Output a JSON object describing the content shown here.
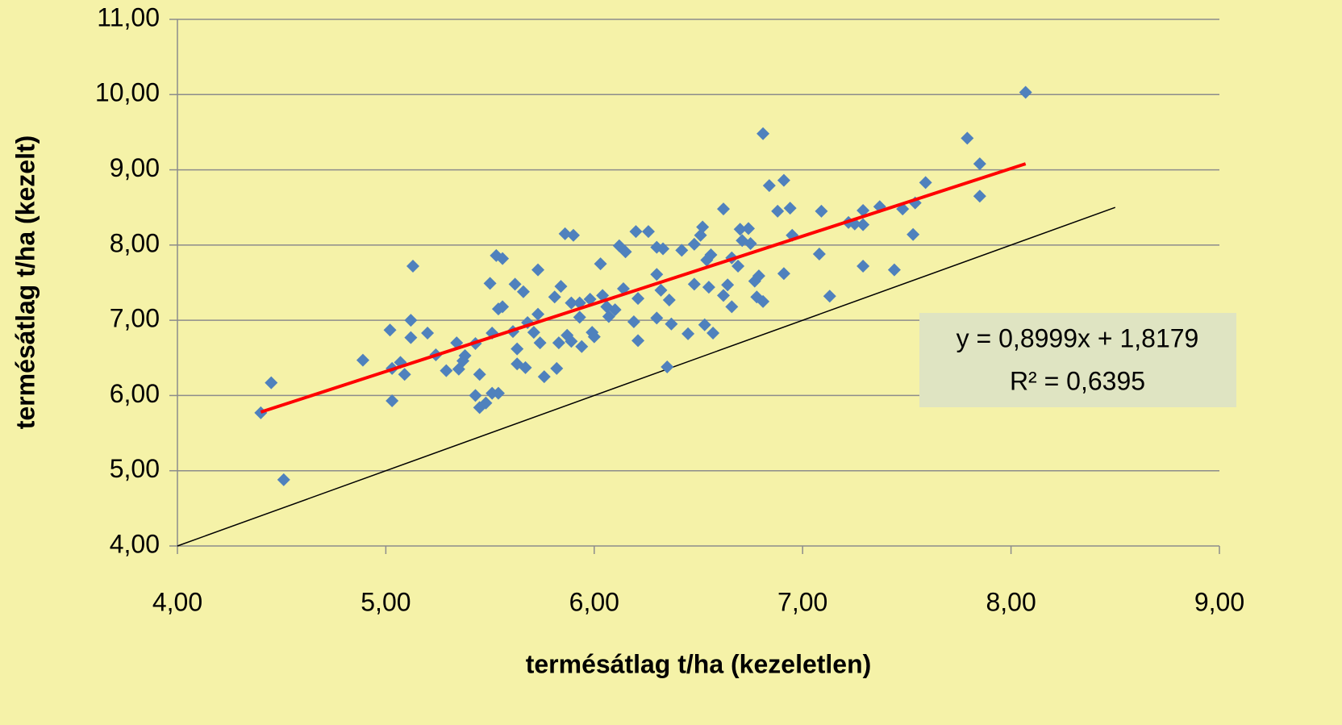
{
  "chart_data": {
    "type": "scatter",
    "xlabel": "termésátlag t/ha (kezeletlen)",
    "ylabel": "termésátlag t/ha (kezelt)",
    "annotation": [
      "y = 0,8999x + 1,8179",
      "R² = 0,6395"
    ],
    "xlim": [
      4,
      9
    ],
    "ylim": [
      4,
      11
    ],
    "xticks": [
      {
        "value": 4,
        "label": "4,00"
      },
      {
        "value": 5,
        "label": "5,00"
      },
      {
        "value": 6,
        "label": "6,00"
      },
      {
        "value": 7,
        "label": "7,00"
      },
      {
        "value": 8,
        "label": "8,00"
      },
      {
        "value": 9,
        "label": "9,00"
      }
    ],
    "yticks": [
      {
        "value": 4,
        "label": "4,00"
      },
      {
        "value": 5,
        "label": "5,00"
      },
      {
        "value": 6,
        "label": "6,00"
      },
      {
        "value": 7,
        "label": "7,00"
      },
      {
        "value": 8,
        "label": "8,00"
      },
      {
        "value": 9,
        "label": "9,00"
      },
      {
        "value": 10,
        "label": "10,00"
      },
      {
        "value": 11,
        "label": "11,00"
      }
    ],
    "grid": true,
    "color": "#4f81bd",
    "x": [
      4.4,
      4.45,
      4.51,
      4.89,
      5.02,
      5.03,
      5.03,
      5.07,
      5.09,
      5.12,
      5.12,
      5.13,
      5.2,
      5.24,
      5.29,
      5.34,
      5.35,
      5.38,
      5.37,
      5.43,
      5.43,
      5.45,
      5.45,
      5.48,
      5.5,
      5.51,
      5.51,
      5.54,
      5.53,
      5.54,
      5.56,
      5.56,
      5.61,
      5.62,
      5.63,
      5.63,
      5.66,
      5.67,
      5.68,
      5.71,
      5.73,
      5.73,
      5.74,
      5.76,
      5.81,
      5.82,
      5.84,
      5.83,
      5.86,
      5.87,
      5.89,
      5.9,
      5.89,
      5.93,
      5.93,
      5.94,
      5.98,
      5.99,
      6.0,
      6.03,
      6.04,
      6.06,
      6.07,
      6.1,
      6.12,
      6.14,
      6.15,
      6.2,
      6.19,
      6.21,
      6.21,
      6.26,
      6.3,
      6.3,
      6.3,
      6.33,
      6.32,
      6.35,
      6.36,
      6.37,
      6.42,
      6.45,
      6.48,
      6.48,
      6.51,
      6.52,
      6.54,
      6.55,
      6.53,
      6.57,
      6.56,
      6.62,
      6.62,
      6.64,
      6.66,
      6.66,
      6.69,
      6.7,
      6.71,
      6.74,
      6.75,
      6.77,
      6.78,
      6.79,
      6.81,
      6.81,
      6.84,
      6.88,
      6.91,
      6.91,
      6.94,
      6.95,
      7.08,
      7.09,
      7.13,
      7.22,
      7.25,
      7.29,
      7.29,
      7.29,
      7.37,
      7.44,
      7.48,
      7.53,
      7.54,
      7.59,
      7.79,
      7.85,
      7.85,
      8.07
    ],
    "y": [
      5.77,
      6.17,
      4.88,
      6.47,
      6.87,
      5.93,
      6.36,
      6.44,
      6.28,
      7.0,
      6.77,
      7.72,
      6.83,
      6.54,
      6.33,
      6.7,
      6.35,
      6.53,
      6.46,
      6.69,
      6.0,
      5.84,
      6.28,
      5.9,
      7.49,
      6.83,
      6.03,
      6.03,
      7.86,
      7.15,
      7.82,
      7.18,
      6.85,
      7.48,
      6.62,
      6.42,
      7.38,
      6.37,
      6.97,
      6.84,
      7.67,
      7.08,
      6.7,
      6.25,
      7.31,
      6.36,
      7.45,
      6.7,
      8.15,
      6.8,
      6.72,
      8.13,
      7.23,
      7.04,
      7.23,
      6.65,
      7.28,
      6.84,
      6.78,
      7.75,
      7.33,
      7.18,
      7.05,
      7.14,
      7.99,
      7.42,
      7.91,
      8.18,
      6.98,
      6.73,
      7.29,
      8.18,
      7.03,
      7.61,
      7.97,
      7.95,
      7.4,
      6.38,
      7.27,
      6.95,
      7.93,
      6.82,
      8.01,
      7.48,
      8.13,
      8.24,
      7.8,
      7.44,
      6.94,
      6.83,
      7.87,
      8.48,
      7.33,
      7.47,
      7.18,
      7.83,
      7.72,
      8.21,
      8.06,
      8.22,
      8.02,
      7.52,
      7.31,
      7.59,
      9.48,
      7.25,
      8.79,
      8.45,
      8.86,
      7.62,
      8.49,
      8.13,
      7.88,
      8.45,
      7.32,
      8.3,
      8.28,
      7.72,
      8.27,
      8.46,
      8.51,
      7.67,
      8.48,
      8.14,
      8.56,
      8.83,
      9.42,
      9.08,
      8.65,
      10.03
    ],
    "trendline": {
      "x": [
        4.4,
        8.07
      ],
      "y": [
        5.78,
        9.08
      ],
      "color": "#ff0000"
    },
    "reference_line": {
      "x": [
        4,
        8.5
      ],
      "y": [
        4,
        8.5
      ],
      "color": "#000000"
    }
  }
}
